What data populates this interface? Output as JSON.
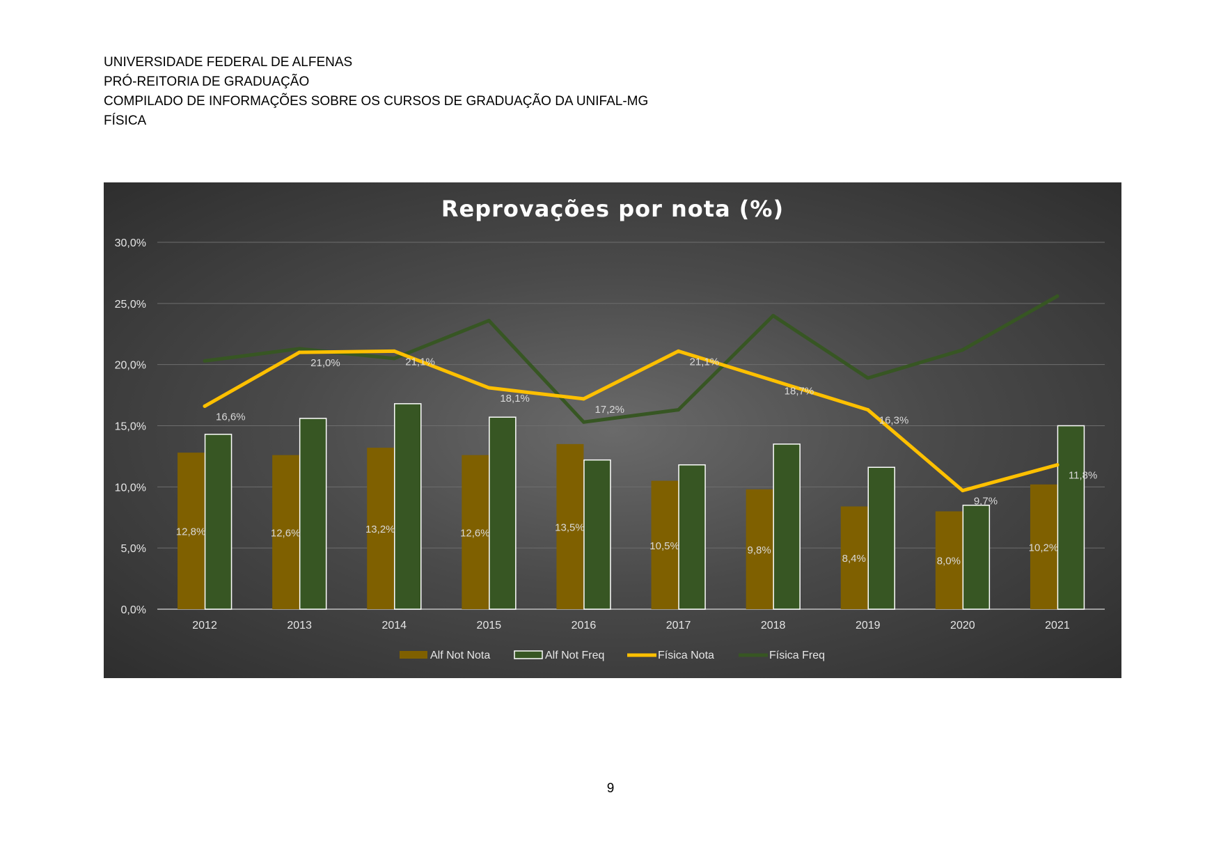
{
  "header": {
    "line1": "UNIVERSIDADE FEDERAL DE ALFENAS",
    "line2": "PRÓ-REITORIA DE GRADUAÇÃO",
    "line3": "COMPILADO DE INFORMAÇÕES SOBRE OS CURSOS DE GRADUAÇÃO DA UNIFAL-MG",
    "line4": "FÍSICA"
  },
  "page_number": "9",
  "chart_data": {
    "type": "bar",
    "title": "Reprovações por nota (%)",
    "xlabel": "",
    "ylabel": "",
    "categories": [
      "2012",
      "2013",
      "2014",
      "2015",
      "2016",
      "2017",
      "2018",
      "2019",
      "2020",
      "2021"
    ],
    "ylim": [
      0,
      30
    ],
    "yticks": [
      0,
      5,
      10,
      15,
      20,
      25,
      30
    ],
    "ytick_labels": [
      "0,0%",
      "5,0%",
      "10,0%",
      "15,0%",
      "20,0%",
      "25,0%",
      "30,0%"
    ],
    "grid": true,
    "legend_position": "bottom",
    "series": [
      {
        "name": "Alf Not Nota",
        "kind": "bar",
        "color": "#7f6000",
        "values": [
          12.8,
          12.6,
          13.2,
          12.6,
          13.5,
          10.5,
          9.8,
          8.4,
          8.0,
          10.2
        ],
        "labels": [
          "12,8%",
          "12,6%",
          "13,2%",
          "12,6%",
          "13,5%",
          "10,5%",
          "9,8%",
          "8,4%",
          "8,0%",
          "10,2%"
        ]
      },
      {
        "name": "Alf Not Freq",
        "kind": "bar",
        "color": "#375623",
        "border": "#ffffff",
        "values": [
          14.3,
          15.6,
          16.8,
          15.7,
          12.2,
          11.8,
          13.5,
          11.6,
          8.5,
          15.0
        ]
      },
      {
        "name": "Física Nota",
        "kind": "line",
        "color": "#ffc000",
        "values": [
          16.6,
          21.0,
          21.1,
          18.1,
          17.2,
          21.1,
          18.7,
          16.3,
          9.7,
          11.8
        ],
        "labels": [
          "16,6%",
          "21,0%",
          "21,1%",
          "18,1%",
          "17,2%",
          "21,1%",
          "18,7%",
          "16,3%",
          "9,7%",
          "11,8%"
        ]
      },
      {
        "name": "Física Freq",
        "kind": "line",
        "color": "#375623",
        "values": [
          20.3,
          21.3,
          20.5,
          23.6,
          15.3,
          16.3,
          24.0,
          18.9,
          21.2,
          25.6
        ]
      }
    ]
  }
}
